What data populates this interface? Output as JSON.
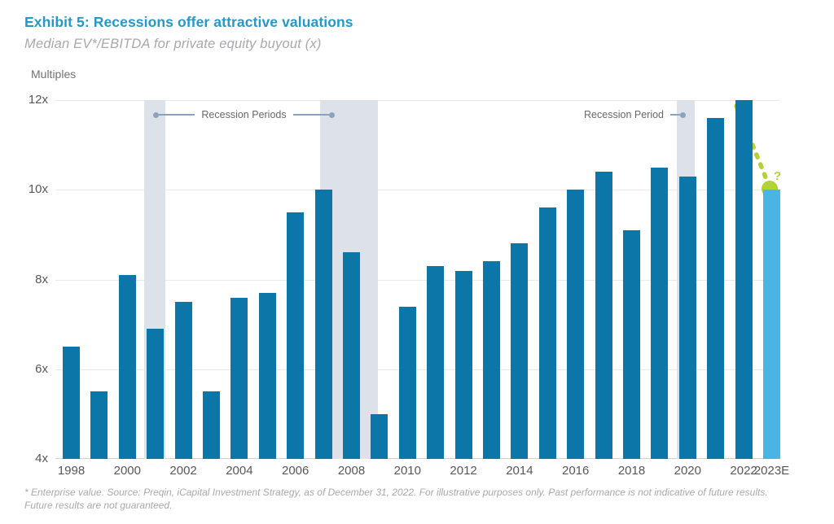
{
  "header": {
    "title": "Exhibit 5: Recessions offer attractive valuations",
    "subtitle": "Median EV*/EBITDA for private equity buyout (x)"
  },
  "chart_data": {
    "type": "bar",
    "axis_title": "Multiples",
    "ylim": [
      4,
      12
    ],
    "grid": true,
    "yticks": [
      {
        "label": "12x",
        "value": 12
      },
      {
        "label": "10x",
        "value": 10
      },
      {
        "label": "8x",
        "value": 8
      },
      {
        "label": "6x",
        "value": 6
      },
      {
        "label": "4x",
        "value": 4
      }
    ],
    "categories": [
      "1998",
      "1999",
      "2000",
      "2001",
      "2002",
      "2003",
      "2004",
      "2005",
      "2006",
      "2007",
      "2008",
      "2009",
      "2010",
      "2011",
      "2012",
      "2013",
      "2014",
      "2015",
      "2016",
      "2017",
      "2018",
      "2019",
      "2020",
      "2021",
      "2022",
      "2023E"
    ],
    "values": [
      6.5,
      5.5,
      8.1,
      6.9,
      7.5,
      5.5,
      7.6,
      7.7,
      9.5,
      10.0,
      8.6,
      5.0,
      7.4,
      8.3,
      8.2,
      8.4,
      8.8,
      9.6,
      10.0,
      10.4,
      9.1,
      10.5,
      10.3,
      11.6,
      12.0,
      10.0
    ],
    "estimate_index": 25,
    "xticks": [
      {
        "label": "1998",
        "year": 1998
      },
      {
        "label": "2000",
        "year": 2000
      },
      {
        "label": "2002",
        "year": 2002
      },
      {
        "label": "2004",
        "year": 2004
      },
      {
        "label": "2006",
        "year": 2006
      },
      {
        "label": "2008",
        "year": 2008
      },
      {
        "label": "2010",
        "year": 2010
      },
      {
        "label": "2012",
        "year": 2012
      },
      {
        "label": "2014",
        "year": 2014
      },
      {
        "label": "2016",
        "year": 2016
      },
      {
        "label": "2018",
        "year": 2018
      },
      {
        "label": "2020",
        "year": 2020
      },
      {
        "label": "2022",
        "year": 2022
      },
      {
        "label": "2023E",
        "year": 2023
      }
    ],
    "recession_bands": [
      {
        "from": 2000.6,
        "to": 2001.35
      },
      {
        "from": 2006.88,
        "to": 2008.94
      },
      {
        "from": 2019.6,
        "to": 2020.25
      }
    ],
    "annotations": {
      "recession_periods_label": "Recession Periods",
      "recession_period_label": "Recession Period",
      "estimate_marker": "?"
    },
    "colors": {
      "bar": "#0d76a8",
      "estimate_bar": "#4ab4e4",
      "recession_band": "#dde1e9",
      "accent_green": "#b2d235",
      "title_blue": "#2598c8"
    }
  },
  "footnote": {
    "line1": "* Enterprise value. Source: Preqin, iCapital Investment Strategy, as of December 31, 2022. For illustrative purposes only. Past performance is not indicative of future results.",
    "line2": "Future results are not guaranteed."
  }
}
